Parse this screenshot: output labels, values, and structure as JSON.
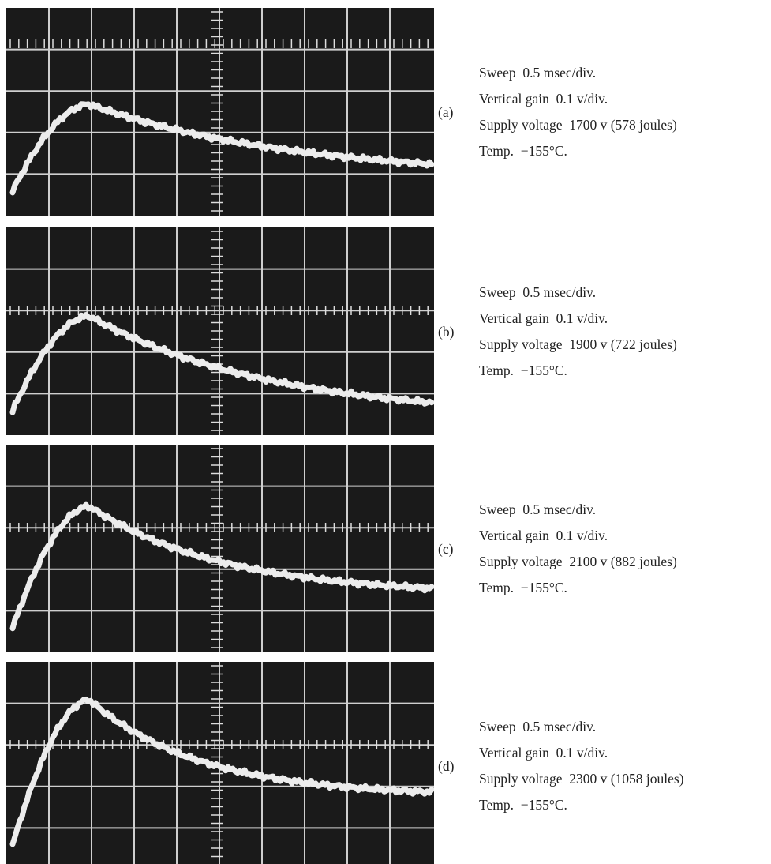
{
  "panels": [
    {
      "label": "(a)",
      "lines": [
        "Sweep  0.5 msec/div.",
        "Vertical gain  0.1 v/div.",
        "Supply voltage  1700 v (578 joules)",
        "Temp.  −155°C."
      ]
    },
    {
      "label": "(b)",
      "lines": [
        "Sweep  0.5 msec/div.",
        "Vertical gain  0.1 v/div.",
        "Supply voltage  1900 v (722 joules)",
        "Temp.  −155°C."
      ]
    },
    {
      "label": "(c)",
      "lines": [
        "Sweep  0.5 msec/div.",
        "Vertical gain  0.1 v/div.",
        "Supply voltage  2100 v (882 joules)",
        "Temp.  −155°C."
      ]
    },
    {
      "label": "(d)",
      "lines": [
        "Sweep  0.5 msec/div.",
        "Vertical gain  0.1 v/div.",
        "Supply voltage  2300 v (1058 joules)",
        "Temp.  −155°C."
      ]
    }
  ]
}
